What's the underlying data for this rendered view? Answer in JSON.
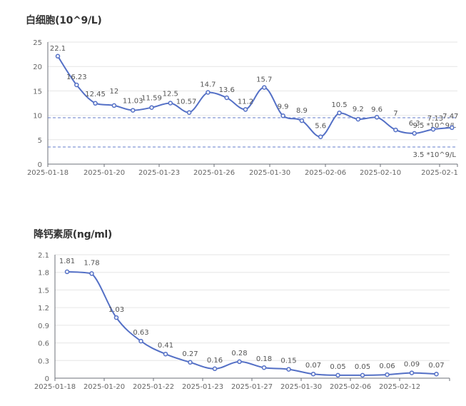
{
  "chart_data": [
    {
      "type": "line",
      "title": "白细胞(10^9/L)",
      "xlabel": "",
      "ylabel": "",
      "ylim": [
        0,
        25
      ],
      "y_ticks": [
        0,
        5,
        10,
        15,
        20,
        25
      ],
      "x_tick_labels": [
        "2025-01-18",
        "2025-01-20",
        "2025-01-23",
        "2025-01-26",
        "2025-01-30",
        "2025-02-06",
        "2025-02-10",
        "2025-02-1"
      ],
      "grid": true,
      "smooth": true,
      "series": [
        {
          "name": "白细胞",
          "color": "#5470c6",
          "values": [
            22.1,
            16.23,
            12.45,
            12,
            11.03,
            11.59,
            12.5,
            10.57,
            14.7,
            13.6,
            11.2,
            15.7,
            9.9,
            8.9,
            5.6,
            10.5,
            9.2,
            9.6,
            7,
            6.3,
            7.13,
            7.47
          ]
        }
      ],
      "reference_lines": [
        {
          "value": 9.5,
          "label": "9.5 *10^9/L",
          "color": "#5470c6",
          "style": "dashed"
        },
        {
          "value": 3.5,
          "label": "3.5 *10^9/L",
          "color": "#5470c6",
          "style": "dashed"
        }
      ]
    },
    {
      "type": "line",
      "title": "降钙素原(ng/ml)",
      "xlabel": "",
      "ylabel": "",
      "ylim": [
        0,
        2.1
      ],
      "y_ticks": [
        0,
        0.3,
        0.6,
        0.9,
        1.2,
        1.5,
        1.8,
        2.1
      ],
      "x_tick_labels": [
        "2025-01-18",
        "2025-01-20",
        "2025-01-22",
        "2025-01-23",
        "2025-01-27",
        "2025-01-30",
        "2025-02-06",
        "2025-02-12"
      ],
      "grid": true,
      "smooth": true,
      "series": [
        {
          "name": "降钙素原",
          "color": "#5470c6",
          "values": [
            1.81,
            1.78,
            1.03,
            0.63,
            0.41,
            0.27,
            0.16,
            0.28,
            0.18,
            0.15,
            0.07,
            0.05,
            0.05,
            0.06,
            0.09,
            0.07
          ]
        }
      ],
      "reference_lines": []
    }
  ]
}
